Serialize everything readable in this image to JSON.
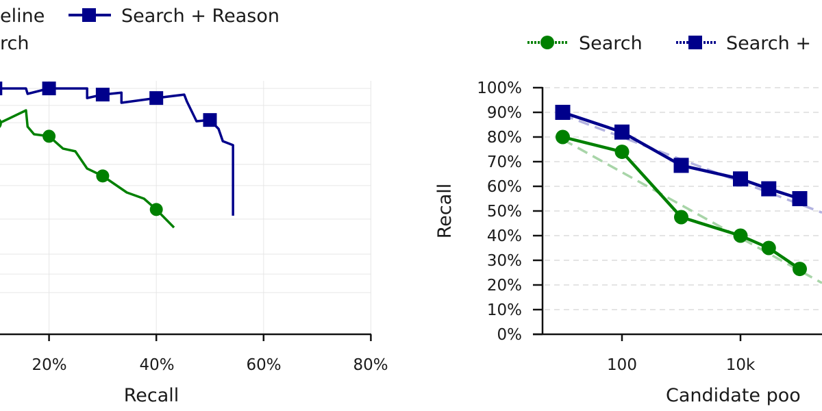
{
  "chart_data": [
    {
      "type": "line",
      "xlabel": "Recall",
      "ylabel": "",
      "xlim": [
        0,
        80
      ],
      "x_ticks": [
        "20%",
        "40%",
        "60%",
        "80%"
      ],
      "x_tick_values": [
        20,
        40,
        60,
        80
      ],
      "y_grid_values": [
        99.7,
        92.8,
        85.8,
        68.9,
        60.3,
        46.7,
        32.5,
        24.4,
        16.9
      ],
      "ylim": [
        0,
        100
      ],
      "grid": true,
      "legend": {
        "placement": "top",
        "entries": [
          "eline",
          "rch",
          "Search + Reason"
        ]
      },
      "series": [
        {
          "name": "Search + Reason",
          "color": "#00008b",
          "marker": "square",
          "x": [
            5,
            10.9,
            15.7,
            16.0,
            20,
            27.1,
            27.1,
            30,
            33.5,
            33.5,
            40,
            45.2,
            45.7,
            47.5,
            50,
            51.6,
            52.4,
            54.3,
            54.3
          ],
          "y": [
            100,
            99.7,
            99.7,
            97.5,
            99.7,
            99.7,
            95.8,
            97.2,
            98,
            93.9,
            95.8,
            97.2,
            94.4,
            86.4,
            86.9,
            83.3,
            78.3,
            76.7,
            48.1
          ],
          "marker_x": [
            10,
            20,
            30,
            40,
            50
          ],
          "marker_y": [
            99.7,
            99.7,
            97.2,
            95.8,
            86.9
          ]
        },
        {
          "name": "Search",
          "color": "#008000",
          "marker": "circle",
          "x": [
            8,
            10.9,
            15.7,
            16.0,
            17.2,
            20,
            22.6,
            24.9,
            27.1,
            30,
            34.5,
            37.7,
            40,
            43.3
          ],
          "y": [
            84,
            85.8,
            90.8,
            84.2,
            81.1,
            80.3,
            75.3,
            74.2,
            67.2,
            64.2,
            57.5,
            55,
            50.6,
            43.3
          ],
          "marker_x": [
            10,
            20,
            30,
            40
          ],
          "marker_y": [
            85.5,
            80.3,
            64.2,
            50.6
          ]
        }
      ]
    },
    {
      "type": "line",
      "xlabel": "Candidate poo",
      "ylabel": "Recall",
      "xscale": "log",
      "x_ticks": [
        "100",
        "10k"
      ],
      "x_tick_values": [
        100,
        10000
      ],
      "ylim": [
        0,
        100
      ],
      "y_ticks": [
        "0%",
        "10%",
        "20%",
        "30%",
        "40%",
        "50%",
        "60%",
        "70%",
        "80%",
        "90%",
        "100%"
      ],
      "y_tick_values": [
        0,
        10,
        20,
        30,
        40,
        50,
        60,
        70,
        80,
        90,
        100
      ],
      "grid": true,
      "legend": {
        "placement": "top",
        "entries": [
          "Search",
          "Search +"
        ]
      },
      "series": [
        {
          "name": "Search",
          "color": "#008000",
          "marker": "circle",
          "x": [
            10,
            100,
            1000,
            10000,
            30000,
            100000
          ],
          "y": [
            80,
            74,
            47.5,
            40,
            35,
            26.5
          ],
          "trend": {
            "color": "#a8d5a8",
            "at_10": 79,
            "slope_per_decade": -13.3
          }
        },
        {
          "name": "Search +",
          "color": "#00008b",
          "marker": "square",
          "x": [
            10,
            100,
            1000,
            10000,
            30000,
            100000
          ],
          "y": [
            90,
            82,
            68.5,
            63,
            59,
            55
          ],
          "trend": {
            "color": "#b3b3e0",
            "at_10": 89,
            "slope_per_decade": -9.06
          }
        }
      ]
    }
  ]
}
